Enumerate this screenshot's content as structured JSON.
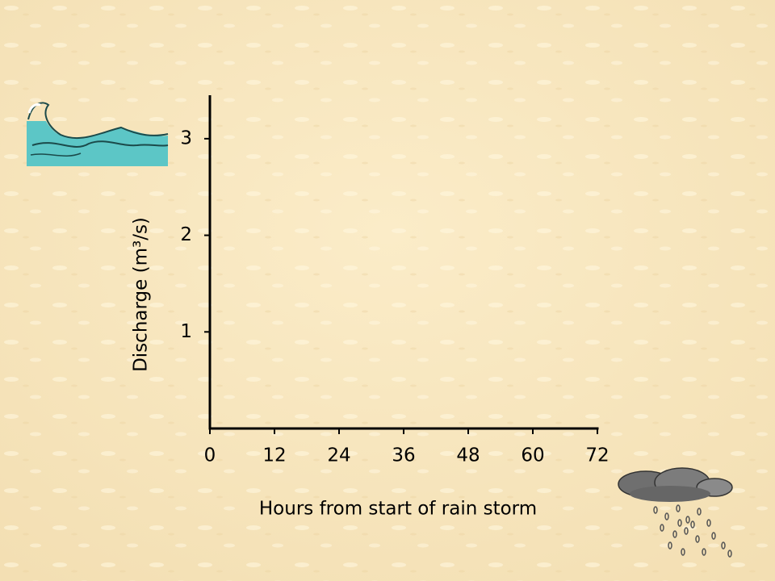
{
  "chart_data": {
    "type": "line",
    "x_label": "Hours from start of rain storm",
    "y_label": "Discharge (m³/s)",
    "xlim": [
      0,
      72
    ],
    "xticks": [
      0,
      12,
      24,
      36,
      48,
      60,
      72
    ],
    "ylim": [
      0,
      3.45
    ],
    "yticks": [
      1,
      2,
      3
    ],
    "grid": false
  }
}
